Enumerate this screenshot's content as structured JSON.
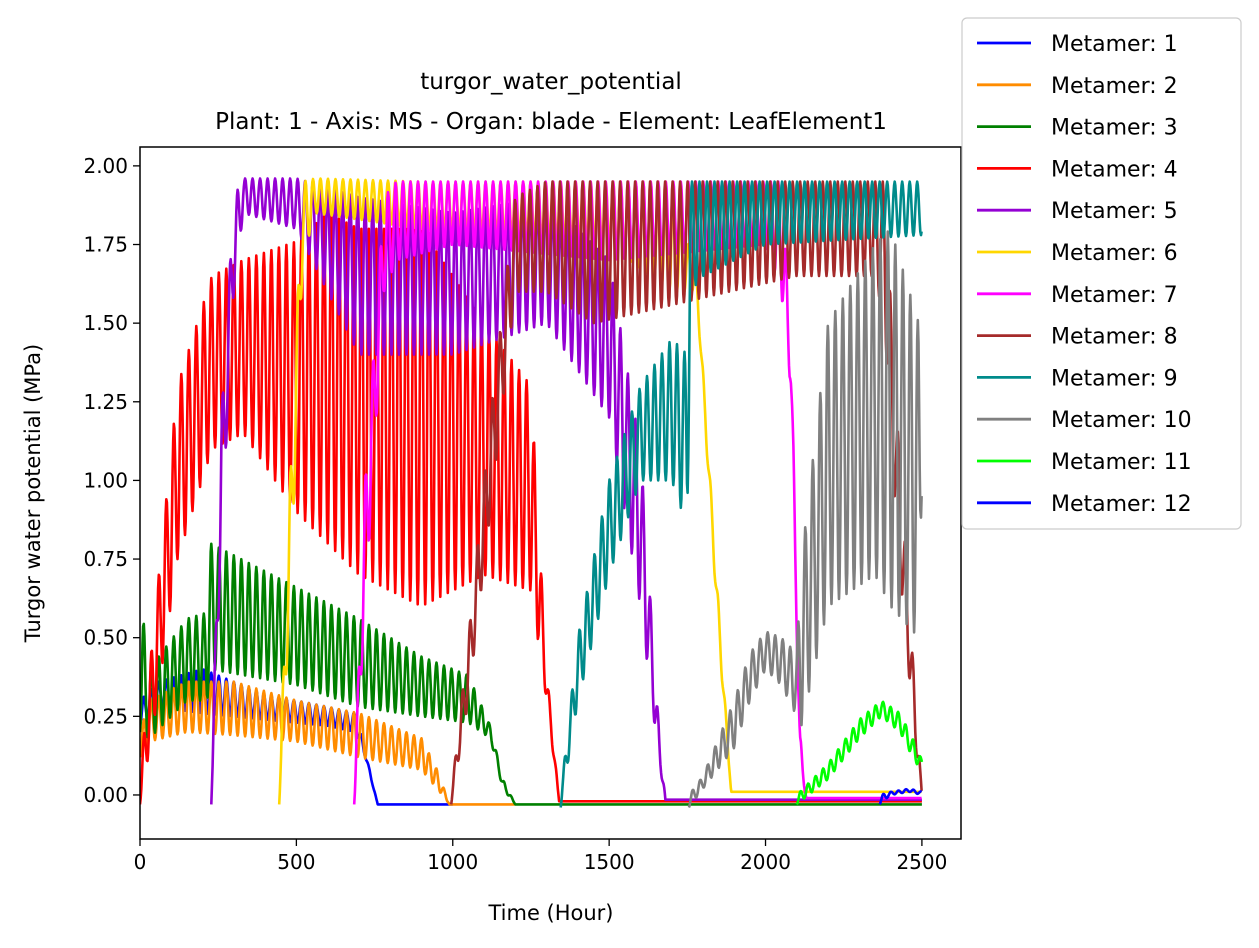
{
  "chart_data": {
    "type": "line",
    "title": "turgor_water_potential",
    "subtitle": "Plant: 1 - Axis: MS - Organ: blade - Element: LeafElement1",
    "xlabel": "Time (Hour)",
    "ylabel": "Turgor water potential (MPa)",
    "xlim": [
      0,
      2625
    ],
    "ylim": [
      -0.14,
      2.06
    ],
    "xticks": [
      0,
      500,
      1000,
      1500,
      2000,
      2500
    ],
    "yticks": [
      0.0,
      0.25,
      0.5,
      0.75,
      1.0,
      1.25,
      1.5,
      1.75,
      2.0
    ],
    "xtick_labels": [
      "0",
      "500",
      "1000",
      "1500",
      "2000",
      "2500"
    ],
    "ytick_labels": [
      "0.00",
      "0.25",
      "0.50",
      "0.75",
      "1.00",
      "1.25",
      "1.50",
      "1.75",
      "2.00"
    ],
    "grid": false,
    "legend_position": "outside-top-right",
    "series": [
      {
        "name": "Metamer: 1",
        "color": "#0000ff",
        "period": 24,
        "envelope": [
          [
            0,
            0.22,
            0.3
          ],
          [
            60,
            0.28,
            0.36
          ],
          [
            200,
            0.26,
            0.4
          ],
          [
            400,
            0.24,
            0.32
          ],
          [
            600,
            0.22,
            0.28
          ],
          [
            690,
            0.2,
            0.26
          ],
          [
            720,
            0.12,
            0.14
          ],
          [
            760,
            -0.03,
            -0.03
          ],
          [
            1000,
            -0.03,
            -0.03
          ]
        ]
      },
      {
        "name": "Metamer: 2",
        "color": "#ff8c00",
        "period": 24,
        "envelope": [
          [
            0,
            0.12,
            0.2
          ],
          [
            30,
            0.17,
            0.3
          ],
          [
            150,
            0.2,
            0.36
          ],
          [
            300,
            0.19,
            0.36
          ],
          [
            500,
            0.17,
            0.3
          ],
          [
            700,
            0.12,
            0.26
          ],
          [
            900,
            0.08,
            0.18
          ],
          [
            950,
            0.02,
            0.08
          ],
          [
            990,
            -0.03,
            -0.03
          ],
          [
            1200,
            -0.03,
            -0.03
          ]
        ]
      },
      {
        "name": "Metamer: 3",
        "color": "#008000",
        "period": 24,
        "envelope": [
          [
            0,
            0.2,
            0.64
          ],
          [
            30,
            0.18,
            0.4
          ],
          [
            150,
            0.3,
            0.56
          ],
          [
            215,
            0.3,
            0.58
          ],
          [
            225,
            0.4,
            0.8
          ],
          [
            500,
            0.35,
            0.66
          ],
          [
            700,
            0.28,
            0.56
          ],
          [
            900,
            0.25,
            0.44
          ],
          [
            1050,
            0.23,
            0.38
          ],
          [
            1120,
            0.18,
            0.22
          ],
          [
            1160,
            0.02,
            0.05
          ],
          [
            1200,
            -0.03,
            -0.03
          ],
          [
            2500,
            -0.03,
            -0.03
          ]
        ]
      },
      {
        "name": "Metamer: 4",
        "color": "#ff0000",
        "period": 24,
        "envelope": [
          [
            0,
            -0.03,
            0.05
          ],
          [
            40,
            0.2,
            0.5
          ],
          [
            120,
            0.75,
            1.3
          ],
          [
            230,
            1.1,
            1.65
          ],
          [
            330,
            1.15,
            1.7
          ],
          [
            500,
            0.9,
            1.76
          ],
          [
            600,
            0.8,
            1.85
          ],
          [
            700,
            0.7,
            1.8
          ],
          [
            900,
            0.6,
            1.8
          ],
          [
            1100,
            0.7,
            1.5
          ],
          [
            1250,
            0.65,
            1.3
          ],
          [
            1300,
            0.3,
            0.4
          ],
          [
            1340,
            -0.02,
            -0.02
          ],
          [
            2500,
            -0.02,
            -0.02
          ]
        ]
      },
      {
        "name": "Metamer: 5",
        "color": "#9400d3",
        "period": 24,
        "envelope": [
          [
            228,
            -0.03,
            0.0
          ],
          [
            260,
            0.8,
            1.2
          ],
          [
            300,
            1.6,
            1.9
          ],
          [
            330,
            1.85,
            1.96
          ],
          [
            500,
            1.8,
            1.96
          ],
          [
            700,
            1.4,
            1.9
          ],
          [
            1000,
            1.4,
            1.85
          ],
          [
            1300,
            1.5,
            1.9
          ],
          [
            1500,
            1.2,
            1.7
          ],
          [
            1600,
            0.6,
            1.1
          ],
          [
            1660,
            0.1,
            0.2
          ],
          [
            1680,
            -0.015,
            -0.015
          ],
          [
            2500,
            -0.015,
            -0.015
          ]
        ]
      },
      {
        "name": "Metamer: 6",
        "color": "#ffd700",
        "period": 24,
        "envelope": [
          [
            445,
            -0.03,
            0.0
          ],
          [
            480,
            0.6,
            1.0
          ],
          [
            520,
            1.7,
            1.95
          ],
          [
            560,
            1.85,
            1.96
          ],
          [
            900,
            1.8,
            1.95
          ],
          [
            1500,
            1.75,
            1.95
          ],
          [
            1700,
            1.6,
            1.95
          ],
          [
            1780,
            1.6,
            1.65
          ],
          [
            1850,
            0.5,
            0.6
          ],
          [
            1890,
            0.01,
            0.01
          ],
          [
            2500,
            0.01,
            0.01
          ]
        ]
      },
      {
        "name": "Metamer: 7",
        "color": "#ff00ff",
        "period": 24,
        "envelope": [
          [
            685,
            -0.03,
            0.0
          ],
          [
            720,
            0.6,
            1.0
          ],
          [
            780,
            1.6,
            1.9
          ],
          [
            820,
            1.7,
            1.95
          ],
          [
            1000,
            1.75,
            1.95
          ],
          [
            1500,
            1.7,
            1.95
          ],
          [
            2000,
            1.75,
            1.95
          ],
          [
            2050,
            1.6,
            1.95
          ],
          [
            2080,
            1.3,
            1.5
          ],
          [
            2110,
            0.1,
            0.2
          ],
          [
            2130,
            -0.01,
            -0.01
          ],
          [
            2500,
            -0.01,
            -0.01
          ]
        ]
      },
      {
        "name": "Metamer: 8",
        "color": "#a52a2a",
        "period": 24,
        "envelope": [
          [
            995,
            -0.03,
            0.0
          ],
          [
            1050,
            0.3,
            0.5
          ],
          [
            1120,
            0.9,
            1.2
          ],
          [
            1200,
            1.6,
            1.9
          ],
          [
            1300,
            1.6,
            1.95
          ],
          [
            1450,
            1.5,
            1.95
          ],
          [
            2100,
            1.65,
            1.95
          ],
          [
            2350,
            1.65,
            1.95
          ],
          [
            2380,
            1.5,
            1.95
          ],
          [
            2420,
            0.8,
            1.2
          ],
          [
            2480,
            0.15,
            0.3
          ],
          [
            2500,
            0.0,
            0.0
          ]
        ]
      },
      {
        "name": "Metamer: 9",
        "color": "#008b8b",
        "period": 24,
        "envelope": [
          [
            1345,
            -0.04,
            0.0
          ],
          [
            1400,
            0.3,
            0.5
          ],
          [
            1500,
            0.7,
            1.0
          ],
          [
            1600,
            1.0,
            1.3
          ],
          [
            1700,
            1.0,
            1.45
          ],
          [
            1750,
            0.85,
            1.4
          ],
          [
            1760,
            1.6,
            1.95
          ],
          [
            1800,
            1.65,
            1.95
          ],
          [
            2000,
            1.75,
            1.95
          ],
          [
            2500,
            1.78,
            1.95
          ]
        ]
      },
      {
        "name": "Metamer: 10",
        "color": "#808080",
        "period": 24,
        "envelope": [
          [
            1755,
            -0.04,
            0.0
          ],
          [
            1800,
            0.02,
            0.06
          ],
          [
            1900,
            0.15,
            0.3
          ],
          [
            1950,
            0.3,
            0.45
          ],
          [
            2000,
            0.4,
            0.52
          ],
          [
            2050,
            0.35,
            0.5
          ],
          [
            2100,
            0.25,
            0.45
          ],
          [
            2110,
            0.2,
            0.7
          ],
          [
            2200,
            0.6,
            1.5
          ],
          [
            2350,
            0.7,
            1.75
          ],
          [
            2400,
            0.6,
            1.8
          ],
          [
            2490,
            0.5,
            1.5
          ],
          [
            2500,
            1.0,
            1.25
          ]
        ]
      },
      {
        "name": "Metamer: 11",
        "color": "#00ff00",
        "period": 24,
        "envelope": [
          [
            2100,
            -0.03,
            0.0
          ],
          [
            2200,
            0.05,
            0.1
          ],
          [
            2300,
            0.18,
            0.24
          ],
          [
            2370,
            0.25,
            0.3
          ],
          [
            2430,
            0.2,
            0.26
          ],
          [
            2480,
            0.1,
            0.16
          ],
          [
            2500,
            0.09,
            0.11
          ]
        ]
      },
      {
        "name": "Metamer: 12",
        "color": "#0000ff",
        "period": 24,
        "envelope": [
          [
            2365,
            -0.03,
            0.0
          ],
          [
            2400,
            0.0,
            0.01
          ],
          [
            2460,
            0.01,
            0.02
          ],
          [
            2500,
            0.0,
            0.01
          ]
        ]
      }
    ]
  }
}
